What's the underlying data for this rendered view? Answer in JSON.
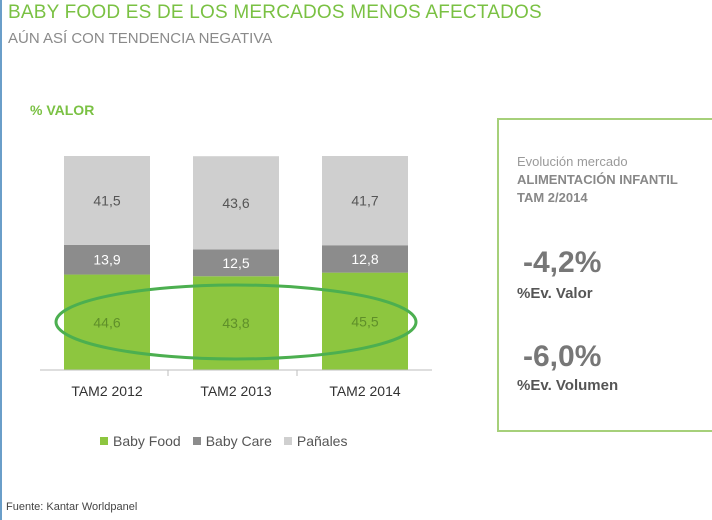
{
  "header": {
    "title": "BABY FOOD ES DE LOS MERCADOS MENOS AFECTADOS",
    "subtitle": "AÚN ASÍ CON TENDENCIA NEGATIVA",
    "metric_label": "% VALOR"
  },
  "chart_data": {
    "type": "bar",
    "stacked": true,
    "categories": [
      "TAM2 2012",
      "TAM2 2013",
      "TAM2 2014"
    ],
    "series": [
      {
        "name": "Baby Food",
        "values": [
          44.6,
          43.8,
          45.5
        ],
        "color": "#8dc63f",
        "label_color": "#5f8f2a"
      },
      {
        "name": "Baby Care",
        "values": [
          13.9,
          12.5,
          12.8
        ],
        "color": "#8c8c8c",
        "label_color": "#ffffff"
      },
      {
        "name": "Pañales",
        "values": [
          41.5,
          43.6,
          41.7
        ],
        "color": "#cfcfcf",
        "label_color": "#555555"
      }
    ],
    "value_labels": [
      [
        "44,6",
        "43,8",
        "45,5"
      ],
      [
        "13,9",
        "12,5",
        "12,8"
      ],
      [
        "41,5",
        "43,6",
        "41,7"
      ]
    ],
    "ylim": [
      0,
      100
    ],
    "grid": false,
    "legend_position": "bottom",
    "annotation": "green ellipse highlighting Baby Food segment"
  },
  "panel": {
    "line1": "Evolución mercado",
    "line2": "ALIMENTACIÓN INFANTIL",
    "line3": "TAM 2/2014",
    "kpis": [
      {
        "value": "-4,2%",
        "label": "%Ev. Valor"
      },
      {
        "value": "-6,0%",
        "label": "%Ev. Volumen"
      }
    ]
  },
  "footer": {
    "source": "Fuente: Kantar Worldpanel"
  },
  "colors": {
    "accent_green": "#7ac143",
    "ellipse_green": "#4caf50",
    "panel_border": "#a6d07a"
  }
}
